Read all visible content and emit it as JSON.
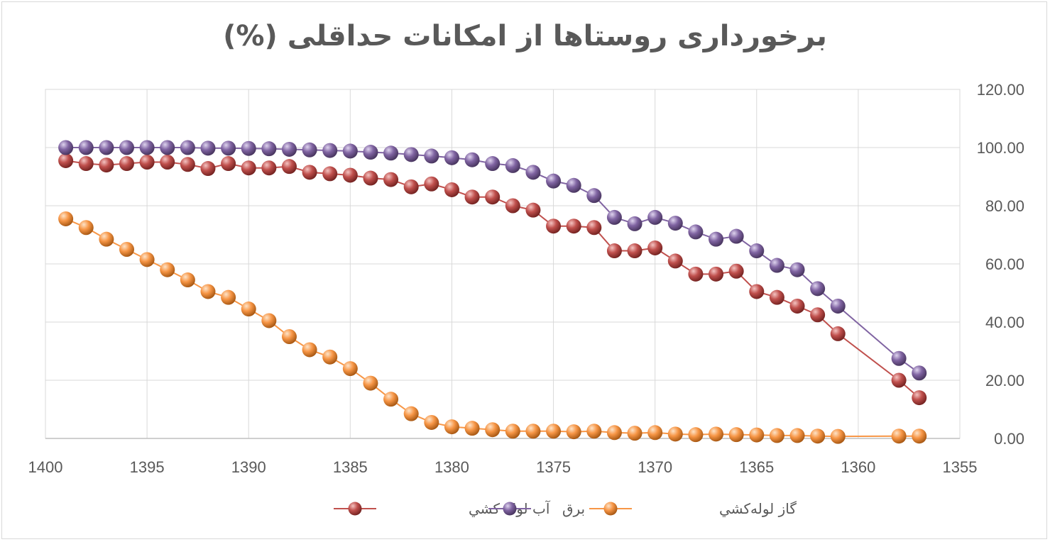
{
  "chart_data": {
    "type": "line",
    "title": "برخورداری روستاها از امکانات حداقلی (%)",
    "xlabel": "",
    "ylabel": "",
    "xlim": [
      1400,
      1355
    ],
    "ylim": [
      0,
      120
    ],
    "x_reversed": true,
    "y_axis_position": "right",
    "x_ticks": [
      "1400",
      "1395",
      "1390",
      "1385",
      "1380",
      "1375",
      "1370",
      "1365",
      "1360",
      "1355"
    ],
    "y_ticks": [
      "0.00",
      "20.00",
      "40.00",
      "60.00",
      "80.00",
      "100.00",
      "120.00"
    ],
    "grid": true,
    "legend_position": "bottom",
    "series": [
      {
        "name": "آب لوله کشي",
        "color": "#c0504d",
        "points": [
          [
            1399,
            95.5
          ],
          [
            1398,
            94.5
          ],
          [
            1397,
            94
          ],
          [
            1396,
            94.5
          ],
          [
            1395,
            95
          ],
          [
            1394,
            95
          ],
          [
            1393,
            94.2
          ],
          [
            1392,
            92.8
          ],
          [
            1391,
            94.5
          ],
          [
            1390,
            93
          ],
          [
            1389,
            93
          ],
          [
            1388,
            93.5
          ],
          [
            1387,
            91.5
          ],
          [
            1386,
            91
          ],
          [
            1385,
            90.5
          ],
          [
            1384,
            89.5
          ],
          [
            1383,
            89
          ],
          [
            1382,
            86.5
          ],
          [
            1381,
            87.5
          ],
          [
            1380,
            85.5
          ],
          [
            1379,
            83
          ],
          [
            1378,
            83
          ],
          [
            1377,
            80
          ],
          [
            1376,
            78.5
          ],
          [
            1375,
            73
          ],
          [
            1374,
            73
          ],
          [
            1373,
            72.5
          ],
          [
            1372,
            64.5
          ],
          [
            1371,
            64.5
          ],
          [
            1370,
            65.5
          ],
          [
            1369,
            61
          ],
          [
            1368,
            56.5
          ],
          [
            1367,
            56.5
          ],
          [
            1366,
            57.5
          ],
          [
            1365,
            50.5
          ],
          [
            1364,
            48.5
          ],
          [
            1363,
            45.5
          ],
          [
            1362,
            42.5
          ],
          [
            1361,
            36
          ],
          [
            1358,
            20
          ],
          [
            1357,
            14
          ]
        ]
      },
      {
        "name": "برق",
        "color": "#8064a2",
        "points": [
          [
            1399,
            100
          ],
          [
            1398,
            100
          ],
          [
            1397,
            100
          ],
          [
            1396,
            100
          ],
          [
            1395,
            100
          ],
          [
            1394,
            100
          ],
          [
            1393,
            100
          ],
          [
            1392,
            99.8
          ],
          [
            1391,
            99.8
          ],
          [
            1390,
            99.7
          ],
          [
            1389,
            99.6
          ],
          [
            1388,
            99.4
          ],
          [
            1387,
            99.2
          ],
          [
            1386,
            99
          ],
          [
            1385,
            98.8
          ],
          [
            1384,
            98.4
          ],
          [
            1383,
            98.1
          ],
          [
            1382,
            97.6
          ],
          [
            1381,
            97.1
          ],
          [
            1380,
            96.5
          ],
          [
            1379,
            95.8
          ],
          [
            1378,
            94.5
          ],
          [
            1377,
            93.8
          ],
          [
            1376,
            91.5
          ],
          [
            1375,
            88.5
          ],
          [
            1374,
            87
          ],
          [
            1373,
            83.5
          ],
          [
            1372,
            76
          ],
          [
            1371,
            73.8
          ],
          [
            1370,
            76
          ],
          [
            1369,
            74
          ],
          [
            1368,
            71
          ],
          [
            1367,
            68.5
          ],
          [
            1366,
            69.5
          ],
          [
            1365,
            64.5
          ],
          [
            1364,
            59.5
          ],
          [
            1363,
            58
          ],
          [
            1362,
            51.5
          ],
          [
            1361,
            45.5
          ],
          [
            1358,
            27.5
          ],
          [
            1357,
            22.5
          ]
        ]
      },
      {
        "name": "گاز لوله‌کشي",
        "color": "#f79646",
        "points": [
          [
            1399,
            75.5
          ],
          [
            1398,
            72.5
          ],
          [
            1397,
            68.5
          ],
          [
            1396,
            65
          ],
          [
            1395,
            61.5
          ],
          [
            1394,
            58
          ],
          [
            1393,
            54.5
          ],
          [
            1392,
            50.5
          ],
          [
            1391,
            48.5
          ],
          [
            1390,
            44.5
          ],
          [
            1389,
            40.5
          ],
          [
            1388,
            35
          ],
          [
            1387,
            30.5
          ],
          [
            1386,
            28
          ],
          [
            1385,
            24
          ],
          [
            1384,
            19
          ],
          [
            1383,
            13.5
          ],
          [
            1382,
            8.5
          ],
          [
            1381,
            5.5
          ],
          [
            1380,
            4
          ],
          [
            1379,
            3.5
          ],
          [
            1378,
            3
          ],
          [
            1377,
            2.5
          ],
          [
            1376,
            2.5
          ],
          [
            1375,
            2.5
          ],
          [
            1374,
            2.3
          ],
          [
            1373,
            2.5
          ],
          [
            1372,
            2
          ],
          [
            1371,
            1.8
          ],
          [
            1370,
            2
          ],
          [
            1369,
            1.5
          ],
          [
            1368,
            1.3
          ],
          [
            1367,
            1.5
          ],
          [
            1366,
            1.3
          ],
          [
            1365,
            1.2
          ],
          [
            1364,
            1
          ],
          [
            1363,
            1
          ],
          [
            1362,
            0.8
          ],
          [
            1361,
            0.7
          ],
          [
            1358,
            0.8
          ],
          [
            1357,
            0.8
          ]
        ]
      }
    ]
  }
}
